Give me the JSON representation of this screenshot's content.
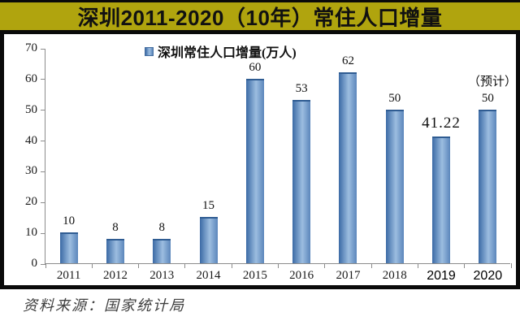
{
  "banner": {
    "title": "深圳2011-2020（10年）常住人口增量"
  },
  "source": {
    "text": "资料来源：国家统计局"
  },
  "colors": {
    "banner_bg": "#b0a40e",
    "border_black": "#0a0a0a",
    "bar_edge": "#3b6aa5",
    "bar_center": "#9cbde0",
    "bar_cap": "#2f5c92",
    "axis": "#8c8c8c",
    "text": "#1a1a1a",
    "source_text": "#3f3f3f"
  },
  "chart_data": {
    "type": "bar",
    "title": "深圳2011-2020（10年）常住人口增量",
    "legend": "深圳常住人口增量(万人)",
    "legend_position": "top-center",
    "unit": "万人",
    "categories": [
      "2011",
      "2012",
      "2013",
      "2014",
      "2015",
      "2016",
      "2017",
      "2018",
      "2019",
      "2020"
    ],
    "values": [
      10,
      8,
      8,
      15,
      60,
      53,
      62,
      50,
      41.22,
      50
    ],
    "labels": [
      "10",
      "8",
      "8",
      "15",
      "60",
      "53",
      "62",
      "50",
      "41.22",
      "50"
    ],
    "notes": [
      "",
      "",
      "",
      "",
      "",
      "",
      "",
      "",
      "",
      "（预计）"
    ],
    "emphasized": [
      false,
      false,
      false,
      false,
      false,
      false,
      false,
      false,
      true,
      false
    ],
    "xlabel_style": [
      "serif",
      "serif",
      "serif",
      "serif",
      "serif",
      "serif",
      "serif",
      "serif",
      "sans",
      "sans"
    ],
    "xlabel": "",
    "ylabel": "",
    "ylim": [
      0,
      70
    ],
    "yticks": [
      0,
      10,
      20,
      30,
      40,
      50,
      60,
      70
    ],
    "grid": false
  }
}
